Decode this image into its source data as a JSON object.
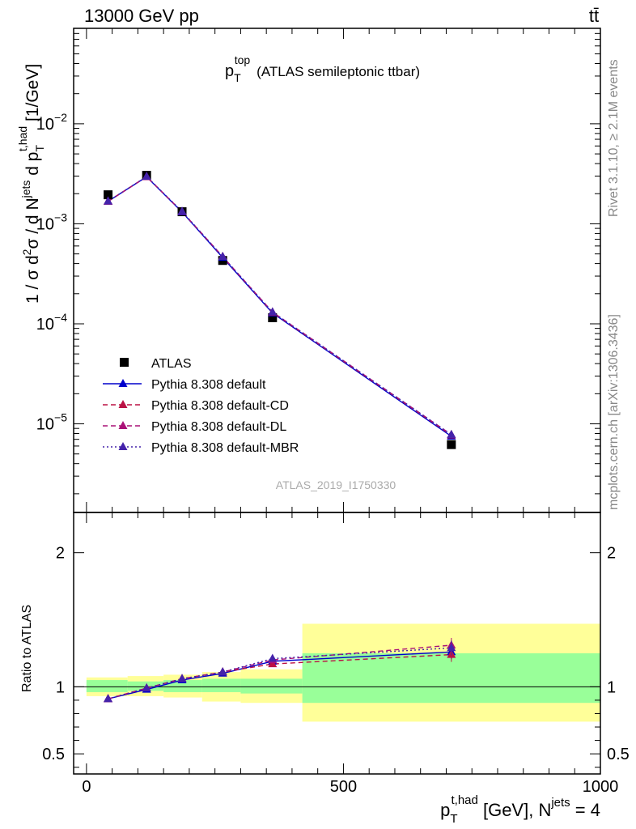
{
  "header": {
    "energy_label": "13000 GeV pp",
    "process_label": "tt̄"
  },
  "side_labels": {
    "rivet": "Rivet 3.1.10, ≥ 2.1M events",
    "mcplots": "mcplots.cern.ch [arXiv:1306.3436]"
  },
  "chart_data": [
    {
      "type": "line",
      "panel": "main",
      "title_main": "p",
      "title_sub": "T",
      "title_sup": "top",
      "title_rest": "(ATLAS semileptonic ttbar)",
      "ylabel": "1 / σ d²σ / d N^jets d p_T^t,had [1/GeV]",
      "ylabel_parts": {
        "a": "1 / σ d",
        "sup2": "2",
        "b": "σ / d N",
        "sup_jets": "jets",
        "c": " d p",
        "sub_T": "T",
        "sup_had": "t,had",
        "d": " [1/GeV]"
      },
      "yscale": "log",
      "ylim": [
        1.3e-06,
        0.09
      ],
      "xlim": [
        -25,
        1000
      ],
      "ytick_labels": [
        {
          "value": 0.01,
          "mant": "10",
          "exp": "−2"
        },
        {
          "value": 0.001,
          "mant": "10",
          "exp": "−3"
        },
        {
          "value": 0.0001,
          "mant": "10",
          "exp": "−4"
        },
        {
          "value": 1e-05,
          "mant": "10",
          "exp": "−5"
        }
      ],
      "watermark": "ATLAS_2019_I1750330",
      "legend_position": "lower-left",
      "x": [
        42,
        117,
        186,
        265,
        362,
        710
      ],
      "series": [
        {
          "name": "ATLAS",
          "marker": "square",
          "color": "#000000",
          "line": "none",
          "values": [
            0.00195,
            0.00305,
            0.00132,
            0.00043,
            0.000115,
            6.2e-06
          ]
        },
        {
          "name": "Pythia 8.308 default",
          "marker": "triangle",
          "color": "#0000cc",
          "line": "solid",
          "values": [
            0.00168,
            0.00295,
            0.00131,
            0.00046,
            0.000128,
            7.5e-06
          ]
        },
        {
          "name": "Pythia 8.308 default-CD",
          "marker": "triangle",
          "color": "#bb1144",
          "line": "dashed",
          "values": [
            0.00168,
            0.00296,
            0.00132,
            0.00047,
            0.00013,
            7.7e-06
          ]
        },
        {
          "name": "Pythia 8.308 default-DL",
          "marker": "triangle",
          "color": "#aa1177",
          "line": "dashed",
          "values": [
            0.00167,
            0.00295,
            0.00132,
            0.00047,
            0.000131,
            7.8e-06
          ]
        },
        {
          "name": "Pythia 8.308 default-MBR",
          "marker": "triangle",
          "color": "#4422aa",
          "line": "dotted",
          "values": [
            0.00168,
            0.00297,
            0.00133,
            0.00047,
            0.000131,
            7.8e-06
          ]
        }
      ]
    },
    {
      "type": "line",
      "panel": "ratio",
      "ylabel": "Ratio to ATLAS",
      "ylim": [
        0.35,
        2.3
      ],
      "xlim": [
        -25,
        1000
      ],
      "xlabel": "p_T^t,had [GeV], N^jets = 4",
      "xlabel_parts": {
        "a": "p",
        "sub_T": "T",
        "sup_had": "t,had",
        "b": " [GeV], N",
        "sup_jets": "jets",
        "c": " = 4"
      },
      "ytick_labels": [
        {
          "value": 0.5,
          "label": "0.5"
        },
        {
          "value": 1,
          "label": "1"
        },
        {
          "value": 2,
          "label": "2"
        }
      ],
      "xtick_labels": [
        {
          "value": 0,
          "label": "0"
        },
        {
          "value": 500,
          "label": "500"
        },
        {
          "value": 1000,
          "label": "1000"
        }
      ],
      "bands": [
        {
          "xlo": 0,
          "xhi": 80,
          "green": [
            0.96,
            1.05
          ],
          "yellow": [
            0.93,
            1.07
          ]
        },
        {
          "xlo": 80,
          "xhi": 150,
          "green": [
            0.97,
            1.04
          ],
          "yellow": [
            0.93,
            1.08
          ]
        },
        {
          "xlo": 150,
          "xhi": 225,
          "green": [
            0.96,
            1.05
          ],
          "yellow": [
            0.92,
            1.09
          ]
        },
        {
          "xlo": 225,
          "xhi": 300,
          "green": [
            0.96,
            1.06
          ],
          "yellow": [
            0.89,
            1.11
          ]
        },
        {
          "xlo": 300,
          "xhi": 420,
          "green": [
            0.95,
            1.06
          ],
          "yellow": [
            0.88,
            1.13
          ]
        },
        {
          "xlo": 420,
          "xhi": 1000,
          "green": [
            0.88,
            1.25
          ],
          "yellow": [
            0.74,
            1.47
          ]
        }
      ],
      "x": [
        42,
        117,
        186,
        265,
        362,
        710
      ],
      "series": [
        {
          "name": "Pythia 8.308 default",
          "color": "#0000cc",
          "line": "solid",
          "values": [
            0.91,
            0.98,
            1.05,
            1.1,
            1.19,
            1.26
          ]
        },
        {
          "name": "Pythia 8.308 default-CD",
          "color": "#bb1144",
          "line": "dashed",
          "values": [
            0.91,
            0.99,
            1.06,
            1.11,
            1.17,
            1.24
          ]
        },
        {
          "name": "Pythia 8.308 default-DL",
          "color": "#aa1177",
          "line": "dashed",
          "values": [
            0.91,
            0.99,
            1.06,
            1.11,
            1.2,
            1.31
          ]
        },
        {
          "name": "Pythia 8.308 default-MBR",
          "color": "#4422aa",
          "line": "dotted",
          "values": [
            0.91,
            0.99,
            1.06,
            1.11,
            1.21,
            1.29
          ]
        }
      ]
    }
  ]
}
